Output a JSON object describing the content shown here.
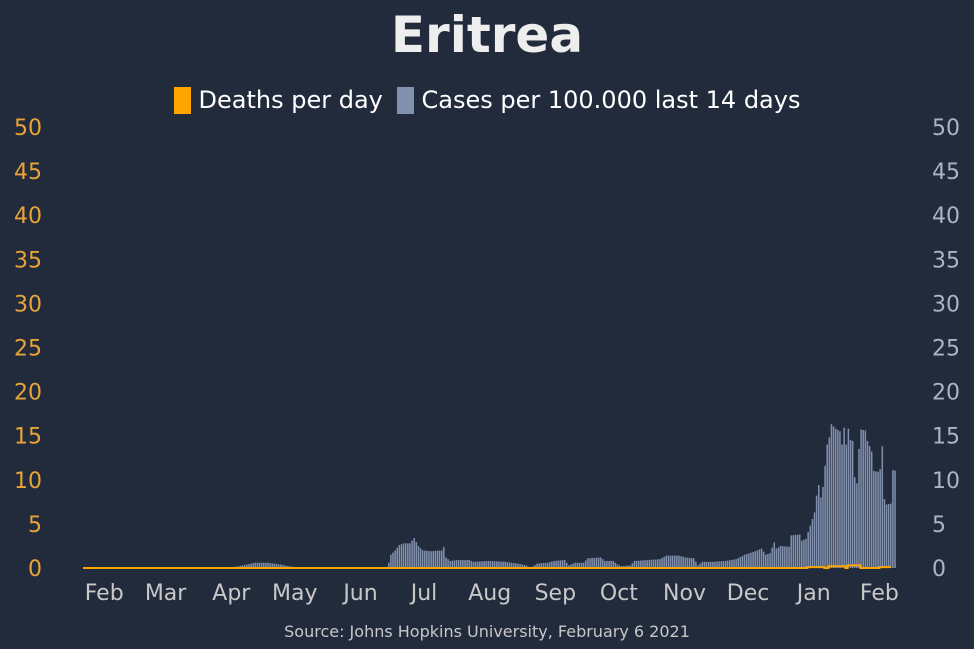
{
  "title": "Eritrea",
  "source": "Source: Johns Hopkins University, February 6 2021",
  "colors": {
    "background": "#222b3c",
    "deaths": "#ffa500",
    "cases": "#8090ad",
    "left_axis": "#e8a33a",
    "right_axis": "#aab4c8",
    "month_labels": "#c8c8c8"
  },
  "chart_data": {
    "type": "bar",
    "legend": {
      "placement": "top-center",
      "entries": [
        "Deaths per day",
        "Cases per 100.000 last 14 days"
      ]
    },
    "x_axis": {
      "range": [
        "2020-01-22",
        "2021-02-06"
      ],
      "month_labels": [
        {
          "label": "Feb",
          "date": "2020-02-01"
        },
        {
          "label": "Mar",
          "date": "2020-03-01"
        },
        {
          "label": "Apr",
          "date": "2020-04-01"
        },
        {
          "label": "May",
          "date": "2020-05-01"
        },
        {
          "label": "Jun",
          "date": "2020-06-01"
        },
        {
          "label": "Jul",
          "date": "2020-07-01"
        },
        {
          "label": "Aug",
          "date": "2020-08-01"
        },
        {
          "label": "Sep",
          "date": "2020-09-01"
        },
        {
          "label": "Oct",
          "date": "2020-10-01"
        },
        {
          "label": "Nov",
          "date": "2020-11-01"
        },
        {
          "label": "Dec",
          "date": "2020-12-01"
        },
        {
          "label": "Jan",
          "date": "2021-01-01"
        },
        {
          "label": "Feb",
          "date": "2021-02-01"
        }
      ]
    },
    "left_axis": {
      "series": "Deaths per day",
      "ylim": [
        0,
        50
      ],
      "ticks": [
        0,
        5,
        10,
        15,
        20,
        25,
        30,
        35,
        40,
        45,
        50
      ]
    },
    "right_axis": {
      "series": "Cases per 100.000 last 14 days",
      "ylim": [
        0,
        50
      ],
      "ticks": [
        0,
        5,
        10,
        15,
        20,
        25,
        30,
        35,
        40,
        45,
        50
      ]
    },
    "grid": false,
    "series": [
      {
        "name": "Cases per 100.000 last 14 days",
        "kind": "bar",
        "points": [
          [
            "2020-03-31",
            0.05
          ],
          [
            "2020-04-04",
            0.2
          ],
          [
            "2020-04-08",
            0.4
          ],
          [
            "2020-04-12",
            0.6
          ],
          [
            "2020-04-18",
            0.6
          ],
          [
            "2020-04-24",
            0.4
          ],
          [
            "2020-04-28",
            0.2
          ],
          [
            "2020-05-02",
            0.05
          ],
          [
            "2020-05-06",
            0.0
          ],
          [
            "2020-06-13",
            0.0
          ],
          [
            "2020-06-14",
            0.6
          ],
          [
            "2020-06-15",
            1.5
          ],
          [
            "2020-06-17",
            2.0
          ],
          [
            "2020-06-19",
            2.6
          ],
          [
            "2020-06-21",
            2.8
          ],
          [
            "2020-06-24",
            2.8
          ],
          [
            "2020-06-26",
            3.4
          ],
          [
            "2020-06-28",
            2.5
          ],
          [
            "2020-06-30",
            2.0
          ],
          [
            "2020-07-04",
            1.9
          ],
          [
            "2020-07-09",
            2.0
          ],
          [
            "2020-07-10",
            2.4
          ],
          [
            "2020-07-11",
            1.2
          ],
          [
            "2020-07-13",
            0.8
          ],
          [
            "2020-07-16",
            0.9
          ],
          [
            "2020-07-22",
            0.9
          ],
          [
            "2020-07-24",
            0.7
          ],
          [
            "2020-07-31",
            0.8
          ],
          [
            "2020-08-08",
            0.7
          ],
          [
            "2020-08-14",
            0.5
          ],
          [
            "2020-08-18",
            0.3
          ],
          [
            "2020-08-20",
            0.0
          ],
          [
            "2020-08-23",
            0.5
          ],
          [
            "2020-08-28",
            0.6
          ],
          [
            "2020-08-31",
            0.8
          ],
          [
            "2020-09-05",
            0.9
          ],
          [
            "2020-09-07",
            0.3
          ],
          [
            "2020-09-10",
            0.6
          ],
          [
            "2020-09-14",
            0.6
          ],
          [
            "2020-09-16",
            1.1
          ],
          [
            "2020-09-22",
            1.2
          ],
          [
            "2020-09-24",
            0.8
          ],
          [
            "2020-09-28",
            0.8
          ],
          [
            "2020-09-30",
            0.4
          ],
          [
            "2020-10-02",
            0.2
          ],
          [
            "2020-10-06",
            0.3
          ],
          [
            "2020-10-08",
            0.8
          ],
          [
            "2020-10-14",
            0.9
          ],
          [
            "2020-10-20",
            1.0
          ],
          [
            "2020-10-23",
            1.4
          ],
          [
            "2020-10-29",
            1.4
          ],
          [
            "2020-11-01",
            1.2
          ],
          [
            "2020-11-05",
            1.1
          ],
          [
            "2020-11-07",
            0.3
          ],
          [
            "2020-11-09",
            0.7
          ],
          [
            "2020-11-14",
            0.7
          ],
          [
            "2020-11-20",
            0.8
          ],
          [
            "2020-11-25",
            1.0
          ],
          [
            "2020-11-29",
            1.5
          ],
          [
            "2020-12-04",
            1.9
          ],
          [
            "2020-12-07",
            2.2
          ],
          [
            "2020-12-09",
            1.5
          ],
          [
            "2020-12-11",
            1.7
          ],
          [
            "2020-12-13",
            2.9
          ],
          [
            "2020-12-14",
            2.2
          ],
          [
            "2020-12-16",
            2.5
          ],
          [
            "2020-12-20",
            2.4
          ],
          [
            "2020-12-21",
            3.7
          ],
          [
            "2020-12-25",
            3.8
          ],
          [
            "2020-12-26",
            3.1
          ],
          [
            "2020-12-28",
            3.3
          ],
          [
            "2020-12-30",
            4.8
          ],
          [
            "2021-01-01",
            6.3
          ],
          [
            "2021-01-02",
            8.2
          ],
          [
            "2021-01-03",
            9.4
          ],
          [
            "2021-01-04",
            8.0
          ],
          [
            "2021-01-05",
            9.2
          ],
          [
            "2021-01-07",
            14.0
          ],
          [
            "2021-01-08",
            14.8
          ],
          [
            "2021-01-09",
            16.3
          ],
          [
            "2021-01-11",
            15.8
          ],
          [
            "2021-01-13",
            15.5
          ],
          [
            "2021-01-14",
            14.0
          ],
          [
            "2021-01-15",
            15.9
          ],
          [
            "2021-01-16",
            14.0
          ],
          [
            "2021-01-17",
            15.8
          ],
          [
            "2021-01-18",
            14.5
          ],
          [
            "2021-01-19",
            14.4
          ],
          [
            "2021-01-20",
            10.3
          ],
          [
            "2021-01-21",
            9.6
          ],
          [
            "2021-01-22",
            13.5
          ],
          [
            "2021-01-23",
            15.7
          ],
          [
            "2021-01-25",
            15.6
          ],
          [
            "2021-01-26",
            14.4
          ],
          [
            "2021-01-28",
            13.2
          ],
          [
            "2021-01-29",
            11.0
          ],
          [
            "2021-01-31",
            10.9
          ],
          [
            "2021-02-01",
            11.2
          ],
          [
            "2021-02-02",
            13.8
          ],
          [
            "2021-02-03",
            7.8
          ],
          [
            "2021-02-04",
            7.2
          ],
          [
            "2021-02-06",
            7.3
          ],
          [
            "2021-02-07",
            11.1
          ],
          [
            "2021-02-09",
            11.0
          ]
        ]
      },
      {
        "name": "Deaths per day",
        "kind": "step",
        "points": [
          [
            "2020-01-22",
            0
          ],
          [
            "2020-12-28",
            0
          ],
          [
            "2020-12-29",
            0.1
          ],
          [
            "2021-01-05",
            0.1
          ],
          [
            "2021-01-06",
            0
          ],
          [
            "2021-01-08",
            0.2
          ],
          [
            "2021-01-15",
            0.2
          ],
          [
            "2021-01-16",
            0
          ],
          [
            "2021-01-17",
            0.3
          ],
          [
            "2021-01-22",
            0.3
          ],
          [
            "2021-01-23",
            0
          ],
          [
            "2021-01-31",
            0
          ],
          [
            "2021-02-01",
            0.1
          ],
          [
            "2021-02-05",
            0.1
          ],
          [
            "2021-02-06",
            0
          ]
        ]
      }
    ]
  }
}
